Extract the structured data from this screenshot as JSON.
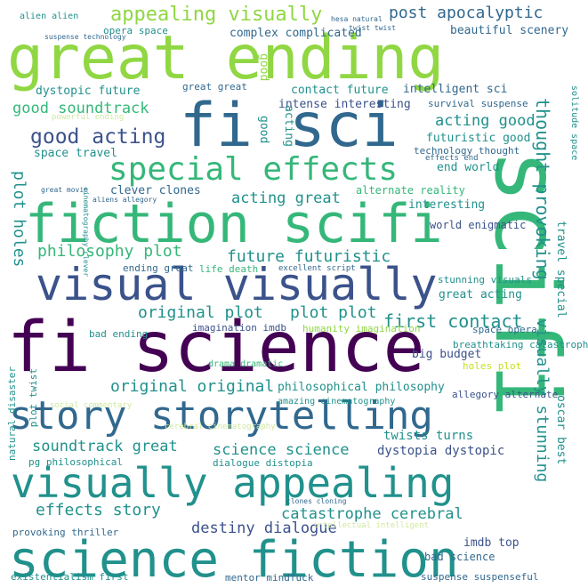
{
  "words": {
    "great_ending": "great ending",
    "fi_science": "fi science",
    "scifi": "scifi",
    "fi_sci": "fi sci",
    "fiction_scifi": "fiction scifi",
    "special_effects": "special effects",
    "visual_visually": "visual visually",
    "story_storytelling": "story storytelling",
    "visually_appealing": "visually appealing",
    "science_fiction": "science fiction",
    "appealing_visually": "appealing visually",
    "post_apocalyptic": "post apocalyptic",
    "beautiful_scenery": "beautiful scenery",
    "complex_complicated": "complex complicated",
    "opera_space": "opera space",
    "alien_alien": "alien alien",
    "dystopic_future": "dystopic future",
    "great_great": "great great",
    "contact_future": "contact future",
    "intelligent_sci": "intelligent sci",
    "survival_suspense": "survival suspense",
    "good_soundtrack": "good soundtrack",
    "intense_interesting": "intense interesting",
    "acting_good": "acting good",
    "good_acting": "good acting",
    "futuristic_good": "futuristic good",
    "technology_thought": "technology thought",
    "space_travel": "space travel",
    "end_world": "end world",
    "thought_provoking": "thought provoking",
    "clever_clones": "clever clones",
    "alternate_reality": "alternate reality",
    "interesting": "interesting",
    "plot_holes": "plot holes",
    "acting_great": "acting great",
    "philosophy_plot": "philosophy plot",
    "future_futuristic": "future futuristic",
    "world_enigmatic": "world enigmatic",
    "ending_great": "ending great",
    "life_death": "life death",
    "excellent_script": "excellent script",
    "stunning_visuals": "stunning visuals",
    "travel_special": "travel special",
    "great_acting": "great acting",
    "original_plot": "original plot",
    "plot_plot": "plot plot",
    "first_contact": "first contact",
    "space_opera": "space opera",
    "bad_ending": "bad ending",
    "imagination_imdb": "imagination imdb",
    "humanity_imagination": "humanity imagination",
    "breathtaking_catastrophe": "breathtaking catastrophe",
    "big_budget": "big budget",
    "holes_plot": "holes plot",
    "original_original": "original original",
    "philosophical_philosophy": "philosophical philosophy",
    "drama_dramatic": "drama dramatic",
    "natural_disaster": "natural disaster",
    "plot_twist": "plot twist",
    "allegory_alternate": "allegory alternate",
    "visually_stunning": "visually stunning",
    "oscar_best": "oscar best",
    "soundtrack_great": "soundtrack great",
    "science_science": "science science",
    "dystopia_dystopic": "dystopia dystopic",
    "twists_turns": "twists turns",
    "pg_philosophical": "pg philosophical",
    "dialogue_distopia": "dialogue distopia",
    "cerebral_cinematography": "cerebral cinematography",
    "effects_story": "effects story",
    "catastrophe_cerebral": "catastrophe cerebral",
    "destiny_dialogue": "destiny dialogue",
    "provoking_thriller": "provoking thriller",
    "bad_science": "bad science",
    "imdb_top": "imdb top",
    "existentialism_first": "existentialism first",
    "mentor_mindfuck": "mentor mindfuck",
    "suspense_suspenseful": "suspense suspenseful",
    "solitude_space": "solitude space",
    "good_v1": "good",
    "good_v2": "good",
    "acting_v": "acting",
    "aliens_allegory": "aliens allegory",
    "great_movie": "great movie",
    "cinematography_clever": "cinematography clever",
    "amazing_cinematography": "amazing cinematography",
    "suspense_technology": "suspense technology",
    "hesa_natural": "hesa natural",
    "twist_twist": "twist twist",
    "powerful_ending": "powerful ending",
    "effects_end": "effects end",
    "social_commentary": "social commentary",
    "intellectual_intelligent": "intellectual intelligent",
    "clones_cloning": "clones cloning"
  },
  "palette": {
    "deep_purple": "#440154",
    "indigo": "#3b528b",
    "blue": "#31688e",
    "teal": "#21918c",
    "green": "#35b779",
    "lime": "#90d743",
    "yellow": "#c7e020",
    "light": "#d0e8a0"
  }
}
